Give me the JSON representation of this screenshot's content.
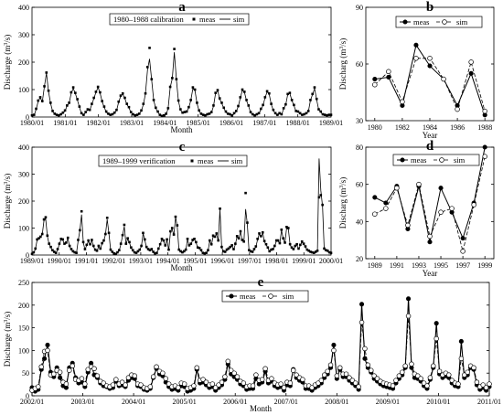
{
  "chart_data": [
    {
      "panel": "a",
      "type": "line",
      "legend_title": "1980–1988 calibration",
      "xlabel": "Month",
      "ylabel": "Discharge (m3/s)",
      "ylim": [
        0,
        400
      ],
      "yticks": [
        0,
        100,
        200,
        300,
        400
      ],
      "xtick_labels": [
        "1980/01",
        "1981/01",
        "1982/01",
        "1983/01",
        "1984/01",
        "1985/01",
        "1986/01",
        "1987/01",
        "1988/01",
        "1989/01"
      ],
      "series": [
        {
          "name": "meas",
          "values": [
            6,
            8,
            30,
            60,
            72,
            58,
            112,
            162,
            96,
            52,
            22,
            12,
            8,
            6,
            10,
            16,
            24,
            42,
            52,
            90,
            108,
            88,
            65,
            38,
            14,
            8,
            18,
            28,
            26,
            48,
            70,
            92,
            110,
            90,
            58,
            38,
            20,
            12,
            8,
            10,
            16,
            26,
            56,
            78,
            86,
            70,
            48,
            36,
            18,
            10,
            6,
            8,
            12,
            24,
            48,
            86,
            182,
            252,
            138,
            62,
            34,
            20,
            8,
            4,
            6,
            12,
            32,
            110,
            142,
            248,
            138,
            60,
            28,
            16,
            18,
            20,
            36,
            62,
            108,
            100,
            52,
            24,
            12,
            8,
            6,
            10,
            12,
            18,
            42,
            88,
            98,
            68,
            52,
            34,
            20,
            12,
            10,
            6,
            14,
            22,
            40,
            72,
            100,
            92,
            62,
            42,
            18,
            10,
            6,
            10,
            14,
            30,
            44,
            72,
            94,
            86,
            48,
            26,
            14,
            8,
            14,
            10,
            32,
            46,
            84,
            88,
            62,
            44,
            22,
            20,
            14,
            8,
            10,
            14,
            22,
            62,
            84,
            108,
            66,
            28,
            20,
            10,
            8,
            6,
            8,
            8
          ]
        },
        {
          "name": "sim",
          "values": [
            4,
            6,
            28,
            58,
            70,
            56,
            110,
            160,
            94,
            50,
            20,
            10,
            6,
            4,
            8,
            14,
            22,
            40,
            50,
            86,
            104,
            86,
            62,
            36,
            12,
            6,
            16,
            26,
            24,
            46,
            68,
            90,
            108,
            88,
            56,
            36,
            18,
            10,
            6,
            8,
            14,
            24,
            54,
            76,
            84,
            68,
            46,
            34,
            16,
            8,
            4,
            6,
            10,
            22,
            46,
            84,
            172,
            212,
            136,
            60,
            32,
            18,
            6,
            2,
            4,
            10,
            30,
            108,
            140,
            236,
            136,
            58,
            26,
            14,
            16,
            18,
            34,
            60,
            104,
            96,
            50,
            22,
            10,
            6,
            4,
            8,
            10,
            16,
            40,
            86,
            96,
            66,
            50,
            32,
            18,
            10,
            8,
            4,
            12,
            20,
            38,
            70,
            98,
            90,
            60,
            40,
            16,
            8,
            4,
            8,
            12,
            28,
            42,
            70,
            92,
            84,
            46,
            24,
            12,
            6,
            12,
            8,
            30,
            44,
            82,
            86,
            60,
            42,
            20,
            18,
            12,
            6,
            8,
            12,
            20,
            60,
            82,
            104,
            64,
            26,
            18,
            8,
            6,
            4,
            6,
            6
          ]
        }
      ]
    },
    {
      "panel": "b",
      "type": "line",
      "xlabel": "Year",
      "ylabel": "Discharg (m3/s)",
      "ylim": [
        30,
        90
      ],
      "yticks": [
        30,
        60,
        90
      ],
      "x": [
        1980,
        1981,
        1982,
        1983,
        1984,
        1985,
        1986,
        1987,
        1988
      ],
      "xtick_labels": [
        "1980",
        "1982",
        "1984",
        "1986",
        "1988"
      ],
      "series": [
        {
          "name": "meas",
          "values": [
            52,
            53,
            38,
            70,
            59,
            52,
            38,
            55,
            33
          ]
        },
        {
          "name": "sim",
          "values": [
            49,
            56,
            40,
            63,
            63,
            52,
            36,
            61,
            35
          ]
        }
      ]
    },
    {
      "panel": "c",
      "type": "line",
      "legend_title": "1989–1999 verification",
      "xlabel": "Month",
      "ylabel": "Discharge (m3/s)",
      "ylim": [
        0,
        400
      ],
      "yticks": [
        0,
        100,
        200,
        300,
        400
      ],
      "xtick_labels": [
        "1989/01",
        "1990/01",
        "1991/01",
        "1992/01",
        "1993/01",
        "1994/01",
        "1995/01",
        "1996/01",
        "1997/01",
        "1998/01",
        "1999/01",
        "2000/01"
      ],
      "series": [
        {
          "name": "meas",
          "values": [
            4,
            10,
            24,
            58,
            62,
            68,
            78,
            132,
            140,
            72,
            42,
            30,
            18,
            12,
            8,
            22,
            42,
            60,
            58,
            42,
            46,
            64,
            34,
            22,
            14,
            10,
            8,
            56,
            92,
            162,
            48,
            22,
            38,
            54,
            40,
            56,
            34,
            20,
            16,
            34,
            24,
            44,
            54,
            78,
            138,
            82,
            20,
            12,
            6,
            4,
            10,
            18,
            42,
            74,
            112,
            42,
            62,
            48,
            28,
            18,
            10,
            8,
            14,
            20,
            34,
            82,
            58,
            30,
            22,
            18,
            22,
            12,
            6,
            8,
            24,
            40,
            60,
            54,
            36,
            58,
            20,
            88,
            100,
            76,
            142,
            110,
            20,
            14,
            10,
            14,
            20,
            60,
            36,
            42,
            56,
            60,
            48,
            28,
            26,
            18,
            8,
            6,
            8,
            18,
            54,
            40,
            72,
            68,
            80,
            54,
            172,
            30,
            14,
            12,
            20,
            24,
            30,
            36,
            22,
            42,
            70,
            62,
            88,
            56,
            50,
            230,
            120,
            18,
            14,
            12,
            22,
            32,
            60,
            80,
            70,
            84,
            52,
            40,
            28,
            14,
            20,
            22,
            34,
            54,
            54,
            44,
            94,
            62,
            46,
            104,
            100,
            40,
            28,
            22,
            34,
            40,
            24,
            38,
            50,
            42,
            32,
            20,
            16,
            12,
            10,
            8,
            12,
            16,
            214,
            222,
            186,
            24,
            18,
            16,
            10,
            8
          ]
        },
        {
          "name": "sim",
          "values": [
            2,
            8,
            22,
            56,
            60,
            66,
            76,
            128,
            136,
            70,
            40,
            28,
            16,
            10,
            6,
            20,
            40,
            58,
            56,
            40,
            44,
            62,
            32,
            20,
            12,
            8,
            6,
            54,
            90,
            150,
            46,
            20,
            36,
            52,
            38,
            54,
            32,
            18,
            14,
            32,
            22,
            42,
            52,
            76,
            132,
            80,
            18,
            10,
            4,
            2,
            8,
            16,
            40,
            72,
            106,
            40,
            60,
            46,
            26,
            16,
            8,
            6,
            12,
            18,
            32,
            80,
            56,
            28,
            20,
            16,
            20,
            10,
            4,
            6,
            22,
            38,
            58,
            52,
            34,
            56,
            18,
            86,
            96,
            74,
            140,
            106,
            18,
            12,
            8,
            12,
            18,
            58,
            34,
            40,
            54,
            58,
            46,
            26,
            24,
            16,
            6,
            4,
            6,
            16,
            52,
            38,
            70,
            66,
            78,
            52,
            168,
            28,
            12,
            10,
            18,
            22,
            28,
            34,
            20,
            40,
            68,
            60,
            86,
            54,
            48,
            170,
            116,
            16,
            12,
            10,
            20,
            30,
            58,
            78,
            68,
            82,
            50,
            38,
            26,
            12,
            18,
            20,
            32,
            52,
            52,
            42,
            92,
            60,
            44,
            100,
            96,
            38,
            26,
            20,
            32,
            38,
            22,
            36,
            48,
            40,
            30,
            18,
            14,
            10,
            8,
            6,
            10,
            14,
            358,
            240,
            180,
            22,
            16,
            14,
            8,
            6
          ]
        }
      ]
    },
    {
      "panel": "d",
      "type": "line",
      "xlabel": "Year",
      "ylabel": "Discharg (m3/s)",
      "ylim": [
        20,
        80
      ],
      "yticks": [
        20,
        40,
        60,
        80
      ],
      "x": [
        1989,
        1990,
        1991,
        1992,
        1993,
        1994,
        1995,
        1996,
        1997,
        1998,
        1999
      ],
      "xtick_labels": [
        "1989",
        "1991",
        "1993",
        "1995",
        "1997",
        "1999"
      ],
      "series": [
        {
          "name": "meas",
          "values": [
            53,
            50,
            59,
            36,
            59,
            29,
            58,
            45,
            31,
            50,
            80
          ]
        },
        {
          "name": "sim",
          "values": [
            44,
            47,
            58,
            38,
            60,
            32,
            45,
            47,
            24,
            49,
            75
          ]
        }
      ]
    },
    {
      "panel": "e",
      "type": "line",
      "xlabel": "Month",
      "ylabel": "Discharge (m3/s)",
      "ylim": [
        0,
        250
      ],
      "yticks": [
        0,
        50,
        100,
        150,
        200,
        250
      ],
      "xtick_labels": [
        "2002/01",
        "2003/01",
        "2004/01",
        "2005/01",
        "2006/01",
        "2007/01",
        "2008/01",
        "2009/01",
        "2010/01",
        "2011/01"
      ],
      "series": [
        {
          "name": "meas",
          "values": [
            18,
            10,
            14,
            58,
            82,
            112,
            52,
            42,
            62,
            40,
            22,
            18,
            62,
            72,
            40,
            28,
            30,
            20,
            52,
            72,
            46,
            40,
            28,
            22,
            20,
            16,
            18,
            32,
            22,
            24,
            20,
            34,
            40,
            38,
            22,
            20,
            14,
            12,
            16,
            40,
            60,
            48,
            44,
            30,
            20,
            14,
            16,
            12,
            22,
            20,
            10,
            12,
            16,
            58,
            28,
            30,
            24,
            18,
            20,
            12,
            18,
            24,
            36,
            70,
            48,
            42,
            36,
            26,
            22,
            14,
            16,
            16,
            38,
            26,
            30,
            54,
            28,
            32,
            22,
            18,
            20,
            12,
            24,
            22,
            58,
            40,
            34,
            30,
            16,
            16,
            12,
            18,
            22,
            28,
            40,
            48,
            62,
            112,
            38,
            58,
            42,
            42,
            34,
            28,
            22,
            14,
            202,
            82,
            62,
            52,
            38,
            32,
            26,
            22,
            20,
            18,
            16,
            28,
            38,
            46,
            62,
            214,
            62,
            40,
            38,
            32,
            22,
            16,
            36,
            62,
            160,
            48,
            40,
            44,
            40,
            28,
            22,
            20,
            120,
            40,
            46,
            62,
            58,
            24,
            14,
            18,
            12,
            20
          ]
        },
        {
          "name": "sim",
          "values": [
            12,
            16,
            20,
            64,
            98,
            100,
            46,
            48,
            56,
            52,
            30,
            26,
            56,
            66,
            36,
            34,
            38,
            26,
            58,
            64,
            60,
            44,
            32,
            28,
            22,
            20,
            24,
            36,
            26,
            30,
            24,
            40,
            46,
            44,
            26,
            24,
            18,
            16,
            20,
            42,
            64,
            54,
            50,
            38,
            26,
            20,
            22,
            18,
            28,
            26,
            16,
            18,
            22,
            62,
            34,
            36,
            30,
            24,
            26,
            18,
            24,
            30,
            42,
            76,
            56,
            50,
            42,
            32,
            28,
            20,
            22,
            22,
            46,
            34,
            36,
            60,
            34,
            38,
            28,
            24,
            26,
            18,
            30,
            28,
            56,
            46,
            40,
            36,
            22,
            22,
            18,
            24,
            28,
            34,
            46,
            54,
            68,
            100,
            44,
            62,
            48,
            48,
            40,
            34,
            28,
            20,
            162,
            104,
            68,
            56,
            44,
            38,
            32,
            28,
            26,
            24,
            22,
            34,
            44,
            52,
            66,
            176,
            70,
            48,
            44,
            38,
            28,
            22,
            40,
            66,
            126,
            54,
            46,
            50,
            46,
            34,
            28,
            26,
            82,
            46,
            52,
            66,
            62,
            30,
            20,
            24,
            18,
            26
          ]
        }
      ]
    }
  ],
  "labels": {
    "panel_a": "a",
    "panel_b": "b",
    "panel_c": "c",
    "panel_d": "d",
    "panel_e": "e",
    "legend_a_title": "1980–1988 calibration",
    "legend_c_title": "1989–1999 verification",
    "meas": "meas",
    "sim": "sim",
    "month": "Month",
    "year": "Year",
    "ylabel_left": "Discharge (m",
    "ylabel_right": "Discharg (m",
    "ylabel_sup": "3",
    "ylabel_tail": "/s)"
  }
}
